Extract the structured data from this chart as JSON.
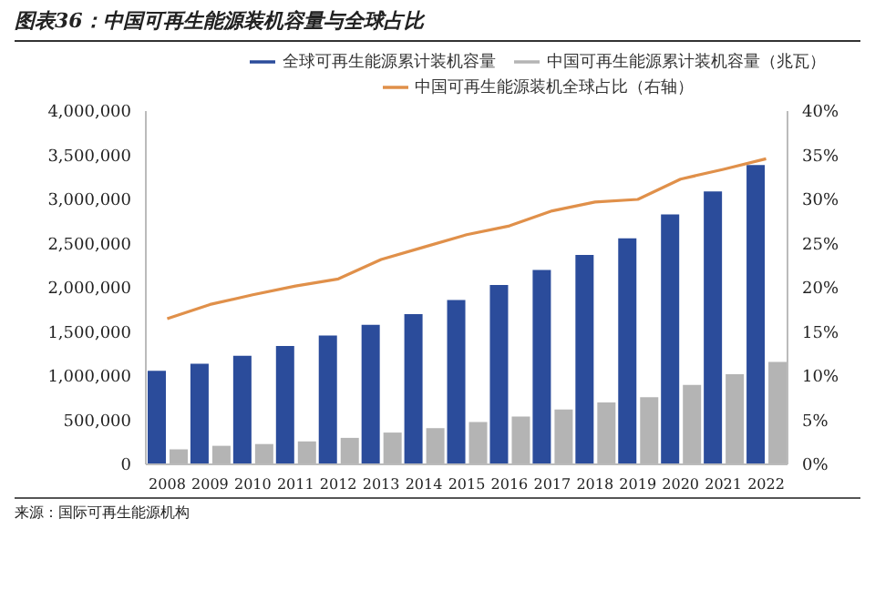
{
  "chart_data": {
    "type": "bar",
    "title": "图表36：中国可再生能源装机容量与全球占比",
    "categories": [
      "2008",
      "2009",
      "2010",
      "2011",
      "2012",
      "2013",
      "2014",
      "2015",
      "2016",
      "2017",
      "2018",
      "2019",
      "2020",
      "2021",
      "2022"
    ],
    "series": [
      {
        "name": "全球可再生能源累计装机容量",
        "color": "#2b4c9b",
        "values": [
          1060000,
          1140000,
          1230000,
          1340000,
          1460000,
          1580000,
          1700000,
          1860000,
          2030000,
          2200000,
          2370000,
          2560000,
          2830000,
          3090000,
          3390000
        ]
      },
      {
        "name": "中国可再生能源累计装机容量（兆瓦）",
        "color": "#b4b4b4",
        "values": [
          170000,
          210000,
          230000,
          260000,
          300000,
          360000,
          410000,
          480000,
          540000,
          620000,
          700000,
          760000,
          900000,
          1020000,
          1160000
        ]
      },
      {
        "name": "中国可再生能源装机全球占比（右轴）",
        "color": "#e0904a",
        "type": "line",
        "axis": "y2",
        "values": [
          16.5,
          18.1,
          19.2,
          20.2,
          21.0,
          23.2,
          24.6,
          26.0,
          27.0,
          28.7,
          29.7,
          30.0,
          32.3,
          33.4,
          34.6
        ]
      }
    ],
    "ylim": [
      0,
      4000000
    ],
    "yticks": [
      {
        "value": 0,
        "label": "0"
      },
      {
        "value": 500000,
        "label": "500,000"
      },
      {
        "value": 1000000,
        "label": "1,000,000"
      },
      {
        "value": 1500000,
        "label": "1,500,000"
      },
      {
        "value": 2000000,
        "label": "2,000,000"
      },
      {
        "value": 2500000,
        "label": "2,500,000"
      },
      {
        "value": 3000000,
        "label": "3,000,000"
      },
      {
        "value": 3500000,
        "label": "3,500,000"
      },
      {
        "value": 4000000,
        "label": "4,000,000"
      }
    ],
    "y2lim": [
      0,
      40
    ],
    "y2ticks": [
      {
        "value": 0,
        "label": "0%"
      },
      {
        "value": 5,
        "label": "5%"
      },
      {
        "value": 10,
        "label": "10%"
      },
      {
        "value": 15,
        "label": "15%"
      },
      {
        "value": 20,
        "label": "20%"
      },
      {
        "value": 25,
        "label": "25%"
      },
      {
        "value": 30,
        "label": "30%"
      },
      {
        "value": 35,
        "label": "35%"
      },
      {
        "value": 40,
        "label": "40%"
      }
    ],
    "legend": "top",
    "marker": "none",
    "annotations": [
      "来源：国际可再生能源机构"
    ]
  }
}
